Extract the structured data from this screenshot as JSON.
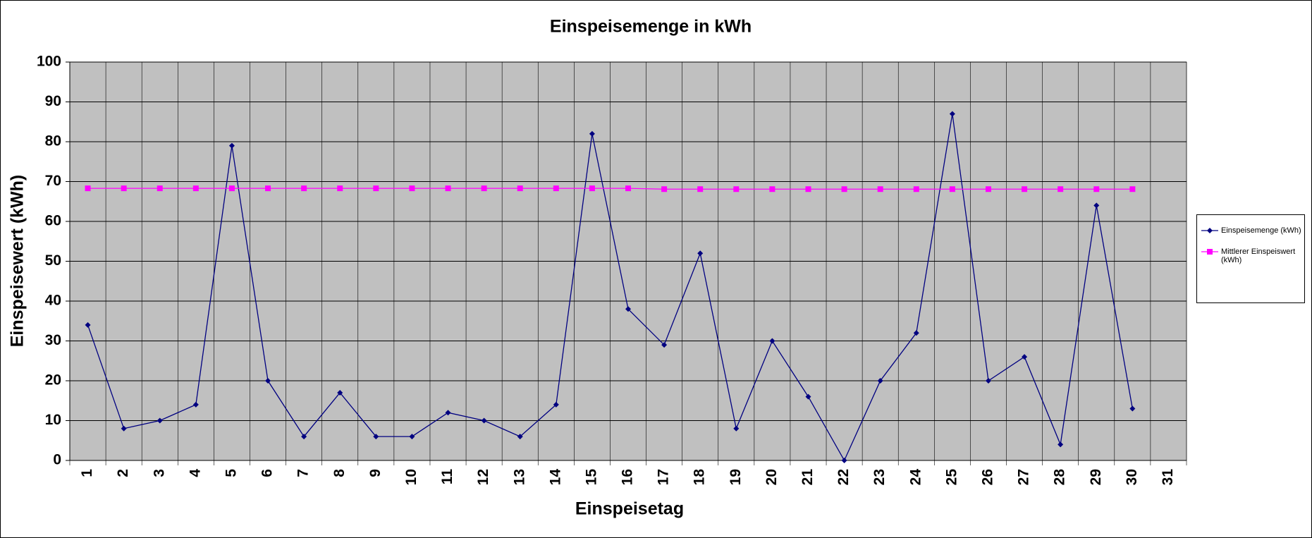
{
  "chart_data": {
    "type": "line",
    "title": "Einspeisemenge in kWh",
    "x_label": "Einspeisetag",
    "y_label": "Einspeisewert  (kWh)",
    "categories": [
      "1",
      "2",
      "3",
      "4",
      "5",
      "6",
      "7",
      "8",
      "9",
      "10",
      "11",
      "12",
      "13",
      "14",
      "15",
      "16",
      "17",
      "18",
      "19",
      "20",
      "21",
      "22",
      "23",
      "24",
      "25",
      "26",
      "27",
      "28",
      "29",
      "30",
      "31"
    ],
    "series": [
      {
        "name": "Einspeisemenge (kWh)",
        "color": "#000080",
        "marker": "diamond",
        "values": [
          34,
          8,
          10,
          14,
          79,
          20,
          6,
          17,
          6,
          6,
          12,
          10,
          6,
          14,
          82,
          38,
          29,
          52,
          8,
          30,
          16,
          0,
          20,
          32,
          87,
          20,
          26,
          4,
          64,
          13,
          null
        ]
      },
      {
        "name": "Mittlerer Einspeiswert (kWh)",
        "color": "#ff00ff",
        "marker": "square",
        "values": [
          68.3,
          68.3,
          68.3,
          68.3,
          68.3,
          68.3,
          68.3,
          68.3,
          68.3,
          68.3,
          68.3,
          68.3,
          68.3,
          68.3,
          68.3,
          68.3,
          68.1,
          68.1,
          68.1,
          68.1,
          68.1,
          68.1,
          68.1,
          68.1,
          68.1,
          68.1,
          68.1,
          68.1,
          68.1,
          68.1,
          null
        ]
      }
    ],
    "ylim": [
      0,
      100
    ],
    "yticks": [
      0,
      10,
      20,
      30,
      40,
      50,
      60,
      70,
      80,
      90,
      100
    ],
    "grid": true,
    "legend": "right"
  }
}
